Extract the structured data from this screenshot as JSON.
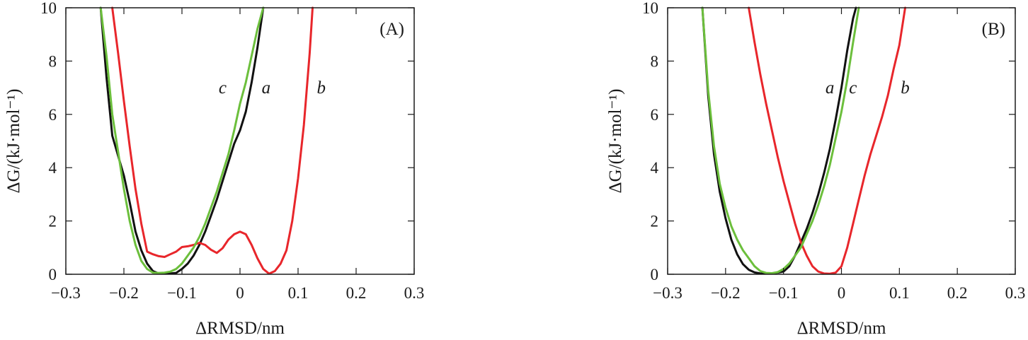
{
  "chart_data": [
    {
      "type": "line",
      "panel_label": "(A)",
      "xlabel": "ΔRMSD/nm",
      "ylabel": "ΔG/(kJ·mol⁻¹)",
      "xlim": [
        -0.3,
        0.3
      ],
      "ylim": [
        0,
        10
      ],
      "xticks": [
        "−0.3",
        "−0.2",
        "−0.1",
        "0",
        "0.1",
        "0.2",
        "0.3"
      ],
      "yticks": [
        "0",
        "2",
        "4",
        "6",
        "8",
        "10"
      ],
      "grid": false,
      "series": [
        {
          "name": "a",
          "color": "#111111",
          "label_pos": [
            0.045,
            7.0
          ],
          "x": [
            -0.24,
            -0.23,
            -0.22,
            -0.2,
            -0.19,
            -0.18,
            -0.17,
            -0.16,
            -0.15,
            -0.14,
            -0.13,
            -0.12,
            -0.11,
            -0.1,
            -0.09,
            -0.08,
            -0.07,
            -0.06,
            -0.05,
            -0.04,
            -0.03,
            -0.02,
            -0.01,
            0.0,
            0.01,
            0.02,
            0.03,
            0.04
          ],
          "y": [
            10.0,
            7.4,
            5.2,
            3.7,
            2.7,
            1.6,
            0.9,
            0.4,
            0.12,
            0.03,
            0.02,
            0.03,
            0.05,
            0.2,
            0.4,
            0.7,
            1.1,
            1.6,
            2.2,
            2.8,
            3.5,
            4.2,
            4.9,
            5.4,
            6.1,
            7.2,
            8.5,
            10.0
          ]
        },
        {
          "name": "b",
          "color": "#e8262b",
          "label_pos": [
            0.14,
            7.0
          ],
          "x": [
            -0.22,
            -0.21,
            -0.2,
            -0.19,
            -0.18,
            -0.17,
            -0.16,
            -0.15,
            -0.14,
            -0.13,
            -0.12,
            -0.11,
            -0.1,
            -0.09,
            -0.08,
            -0.07,
            -0.06,
            -0.05,
            -0.04,
            -0.03,
            -0.02,
            -0.01,
            0.0,
            0.01,
            0.02,
            0.03,
            0.04,
            0.05,
            0.06,
            0.07,
            0.08,
            0.09,
            0.1,
            0.11,
            0.12,
            0.125
          ],
          "y": [
            10.0,
            8.3,
            6.5,
            4.8,
            3.2,
            1.9,
            0.85,
            0.75,
            0.68,
            0.65,
            0.75,
            0.85,
            1.02,
            1.05,
            1.1,
            1.18,
            1.1,
            0.92,
            0.8,
            0.98,
            1.3,
            1.5,
            1.6,
            1.5,
            1.1,
            0.6,
            0.2,
            0.02,
            0.12,
            0.4,
            0.9,
            2.0,
            3.6,
            5.6,
            8.3,
            10.0
          ]
        },
        {
          "name": "c",
          "color": "#6cbf3c",
          "label_pos": [
            -0.03,
            7.0
          ],
          "x": [
            -0.24,
            -0.23,
            -0.22,
            -0.21,
            -0.2,
            -0.19,
            -0.18,
            -0.17,
            -0.16,
            -0.15,
            -0.14,
            -0.13,
            -0.12,
            -0.11,
            -0.1,
            -0.09,
            -0.08,
            -0.07,
            -0.06,
            -0.05,
            -0.04,
            -0.03,
            -0.02,
            -0.01,
            0.0,
            0.01,
            0.02,
            0.03,
            0.04
          ],
          "y": [
            10.0,
            8.2,
            6.0,
            4.6,
            3.2,
            2.0,
            1.1,
            0.5,
            0.2,
            0.06,
            0.05,
            0.06,
            0.1,
            0.2,
            0.4,
            0.7,
            1.0,
            1.4,
            1.9,
            2.5,
            3.1,
            3.8,
            4.5,
            5.4,
            6.4,
            7.2,
            8.2,
            9.2,
            10.0
          ]
        }
      ]
    },
    {
      "type": "line",
      "panel_label": "(B)",
      "xlabel": "ΔRMSD/nm",
      "ylabel": "ΔG/(kJ·mol⁻¹)",
      "xlim": [
        -0.3,
        0.3
      ],
      "ylim": [
        0,
        10
      ],
      "xticks": [
        "−0.3",
        "−0.2",
        "−0.1",
        "0",
        "0.1",
        "0.2",
        "0.3"
      ],
      "yticks": [
        "0",
        "2",
        "4",
        "6",
        "8",
        "10"
      ],
      "grid": false,
      "series": [
        {
          "name": "a",
          "color": "#111111",
          "label_pos": [
            -0.02,
            7.0
          ],
          "x": [
            -0.24,
            -0.23,
            -0.22,
            -0.21,
            -0.2,
            -0.19,
            -0.18,
            -0.17,
            -0.16,
            -0.15,
            -0.14,
            -0.13,
            -0.12,
            -0.11,
            -0.1,
            -0.09,
            -0.08,
            -0.07,
            -0.06,
            -0.05,
            -0.04,
            -0.03,
            -0.02,
            -0.01,
            0.0,
            0.01,
            0.02,
            0.025
          ],
          "y": [
            10.0,
            6.7,
            4.5,
            3.1,
            2.1,
            1.3,
            0.75,
            0.38,
            0.17,
            0.07,
            0.03,
            0.02,
            0.03,
            0.06,
            0.1,
            0.3,
            0.7,
            1.2,
            1.7,
            2.3,
            3.0,
            3.8,
            4.7,
            5.8,
            7.0,
            8.4,
            9.6,
            10.0
          ]
        },
        {
          "name": "b",
          "color": "#e8262b",
          "label_pos": [
            0.11,
            7.0
          ],
          "x": [
            -0.16,
            -0.15,
            -0.14,
            -0.13,
            -0.12,
            -0.11,
            -0.1,
            -0.09,
            -0.08,
            -0.07,
            -0.06,
            -0.05,
            -0.04,
            -0.03,
            -0.02,
            -0.01,
            0.0,
            0.01,
            0.02,
            0.03,
            0.04,
            0.05,
            0.06,
            0.07,
            0.08,
            0.09,
            0.1,
            0.11
          ],
          "y": [
            10.0,
            8.7,
            7.5,
            6.4,
            5.4,
            4.4,
            3.5,
            2.7,
            1.9,
            1.2,
            0.7,
            0.3,
            0.1,
            0.03,
            0.02,
            0.06,
            0.3,
            1.0,
            1.9,
            2.8,
            3.7,
            4.5,
            5.2,
            5.9,
            6.7,
            7.7,
            8.6,
            10.0
          ]
        },
        {
          "name": "c",
          "color": "#6cbf3c",
          "label_pos": [
            0.02,
            7.0
          ],
          "x": [
            -0.24,
            -0.23,
            -0.22,
            -0.21,
            -0.2,
            -0.19,
            -0.18,
            -0.17,
            -0.16,
            -0.15,
            -0.14,
            -0.13,
            -0.12,
            -0.11,
            -0.1,
            -0.09,
            -0.08,
            -0.07,
            -0.06,
            -0.05,
            -0.04,
            -0.03,
            -0.02,
            -0.01,
            0.0,
            0.01,
            0.02,
            0.03
          ],
          "y": [
            10.0,
            6.9,
            4.8,
            3.4,
            2.5,
            1.8,
            1.3,
            0.9,
            0.6,
            0.3,
            0.12,
            0.05,
            0.04,
            0.08,
            0.2,
            0.4,
            0.7,
            1.0,
            1.5,
            2.0,
            2.6,
            3.3,
            4.1,
            5.1,
            6.1,
            7.3,
            8.7,
            10.0
          ]
        }
      ]
    }
  ]
}
